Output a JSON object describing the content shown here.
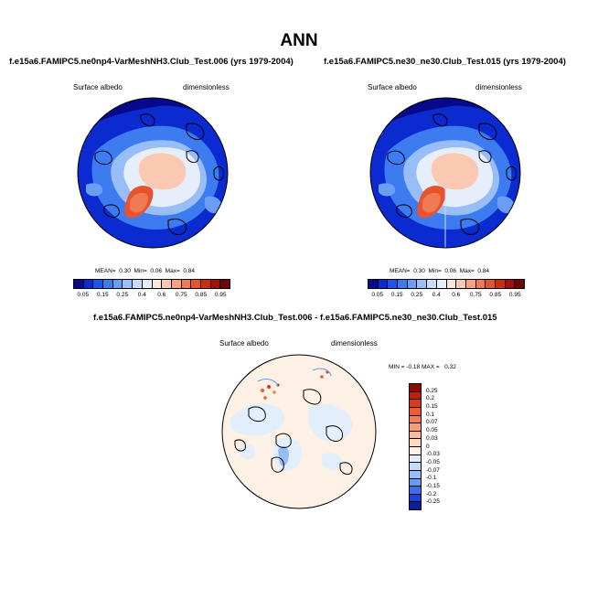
{
  "page": {
    "title": "ANN"
  },
  "panels": [
    {
      "case": "f.e15a6.FAMIPC5.ne0np4-VarMeshNH3.Club_Test.006 (yrs 1979-2004)",
      "variable": "Surface albedo",
      "units": "dimensionless",
      "stats": {
        "mean_label": "MEAN=",
        "mean": "0.30",
        "min_label": "Min=",
        "min": "0.06",
        "max_label": "Max=",
        "max": "0.84"
      }
    },
    {
      "case": "f.e15a6.FAMIPC5.ne30_ne30.Club_Test.015 (yrs 1979-2004)",
      "variable": "Surface albedo",
      "units": "dimensionless",
      "stats": {
        "mean_label": "MEAN=",
        "mean": "0.30",
        "min_label": "Min=",
        "min": "0.06",
        "max_label": "Max=",
        "max": "0.84"
      }
    }
  ],
  "colorbar": {
    "labels": [
      "0.05",
      "0.15",
      "0.25",
      "0.4",
      "0.6",
      "0.75",
      "0.85",
      "0.95"
    ],
    "colors": [
      "#08088a",
      "#0b2bd1",
      "#1e55e6",
      "#3c7cf0",
      "#6a9ef5",
      "#98bdf7",
      "#c6dcf8",
      "#e6eefb",
      "#fde8dc",
      "#fbc9b2",
      "#f7a383",
      "#f17a55",
      "#e6532f",
      "#cc2d14",
      "#a3110a",
      "#700603"
    ]
  },
  "difference": {
    "title": "f.e15a6.FAMIPC5.ne0np4-VarMeshNH3.Club_Test.006 - f.e15a6.FAMIPC5.ne30_ne30.Club_Test.015",
    "variable": "Surface albedo",
    "units": "dimensionless",
    "stats": {
      "min_label": "MIN =",
      "min": "-0.18",
      "max_label": "MAX =",
      "max": "0.32"
    },
    "colorbar": {
      "labels": [
        "0.25",
        "0.2",
        "0.15",
        "0.1",
        "0.07",
        "0.05",
        "0.03",
        "0",
        "-0.03",
        "-0.05",
        "-0.07",
        "-0.1",
        "-0.15",
        "-0.2",
        "-0.25"
      ],
      "colors": [
        "#8e0a05",
        "#c21e0e",
        "#dd3a1d",
        "#ef5a30",
        "#f57c52",
        "#f89b76",
        "#fbbb9c",
        "#fdd9c2",
        "#fdf0e4",
        "#e2eefb",
        "#c4dcf8",
        "#98bdf6",
        "#6b9af1",
        "#3e6feb",
        "#1844d9",
        "#0a1ea0"
      ]
    }
  }
}
